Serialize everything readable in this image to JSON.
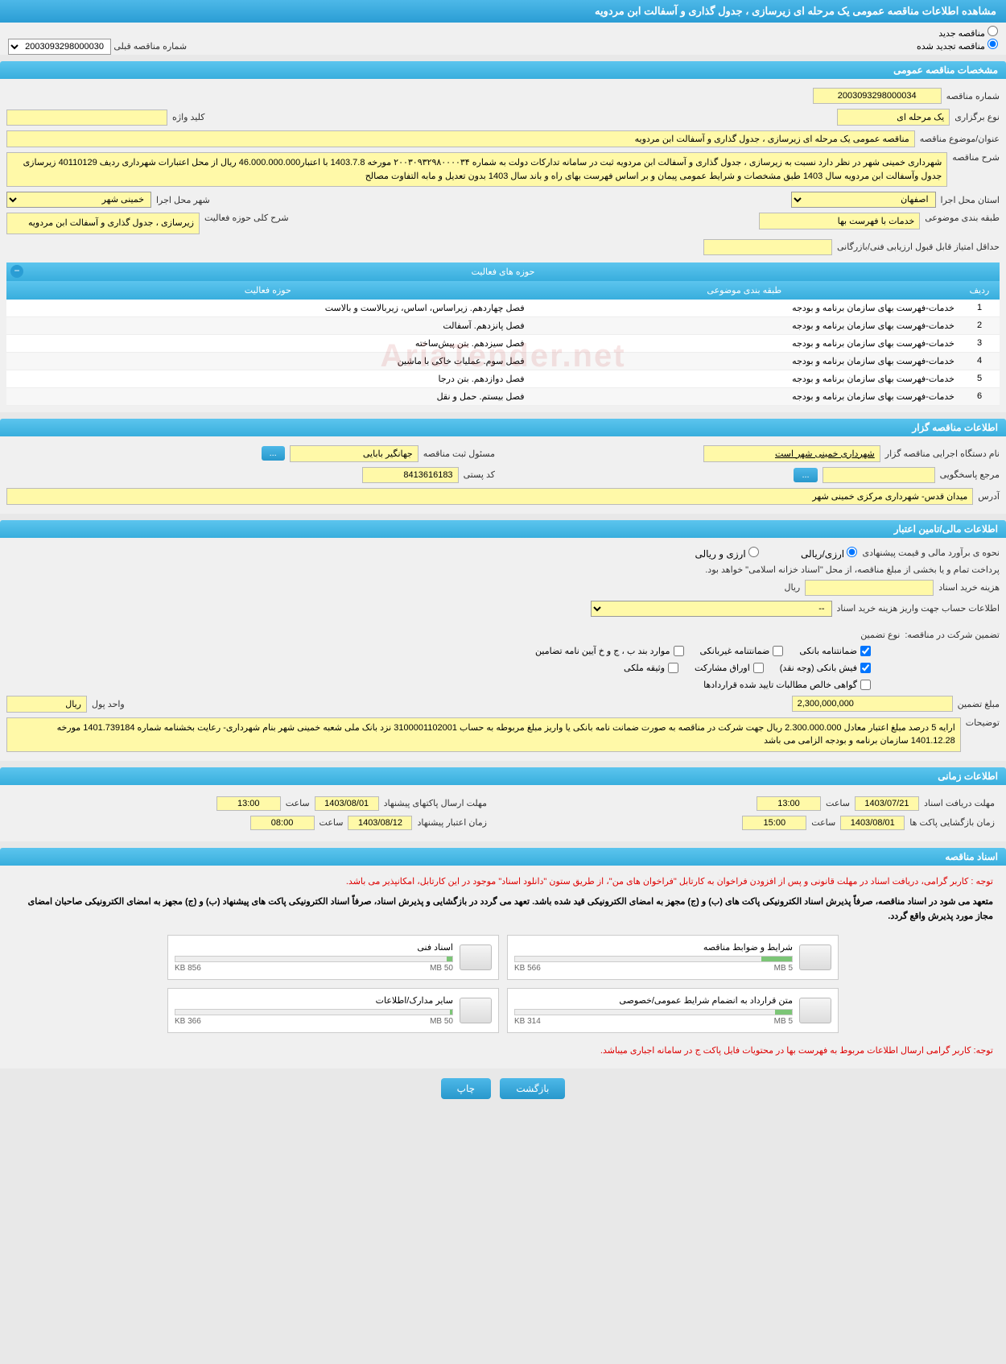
{
  "page_title": "مشاهده اطلاعات مناقصه عمومی یک مرحله ای زیرسازی ، جدول گذاری و آسفالت ابن مردویه",
  "tender_type": {
    "new_label": "مناقصه جدید",
    "renewed_label": "مناقصه تجدید شده",
    "prev_number_label": "شماره مناقصه قبلی",
    "prev_number": "2003093298000030"
  },
  "sections": {
    "general": "مشخصات مناقصه عمومی",
    "holder": "اطلاعات مناقصه گزار",
    "financial": "اطلاعات مالی/تامین اعتبار",
    "timing": "اطلاعات زمانی",
    "documents": "اسناد مناقصه"
  },
  "general": {
    "number_label": "شماره مناقصه",
    "number": "2003093298000034",
    "type_label": "نوع برگزاری",
    "type": "یک مرحله ای",
    "keyword_label": "کلید واژه",
    "keyword": "",
    "title_label": "عنوان/موضوع مناقصه",
    "title": "مناقصه عمومی یک مرحله ای زیرسازی ، جدول گذاری و آسفالت ابن مردویه",
    "desc_label": "شرح مناقصه",
    "desc": "شهرداری خمینی شهر در نظر دارد نسبت به زیرسازی ، جدول گذاری و آسفالت ابن مردویه  ثبت در سامانه تدارکات دولت به شماره ۲۰۰۳۰۹۳۲۹۸۰۰۰۰۳۴ مورخه 1403.7.8 با اعتبار46.000.000.000 ریال از محل اعتبارات شهرداری ردیف 40110129 زیرسازی جدول وآسفالت ابن مردویه سال 1403 طبق مشخصات و شرایط عمومی پیمان و بر اساس فهرست بهای راه و باند سال 1403 بدون تعدیل و مابه التفاوت مصالح",
    "province_label": "استان محل اجرا",
    "province": "اصفهان",
    "city_label": "شهر محل اجرا",
    "city": "خمینی شهر",
    "category_label": "طبقه بندی موضوعی",
    "category": "خدمات با فهرست بها",
    "scope_label": "شرح کلی حوزه فعالیت",
    "scope": "زیرسازی ، جدول گذاری و آسفالت ابن مردویه",
    "min_score_label": "حداقل امتیاز قابل قبول ارزیابی فنی/بازرگانی",
    "min_score": ""
  },
  "activities": {
    "header": "حوزه های فعالیت",
    "col_idx": "ردیف",
    "col_cat": "طبقه بندی موضوعی",
    "col_scope": "حوزه فعالیت",
    "rows": [
      {
        "idx": "1",
        "cat": "خدمات-فهرست بهای سازمان برنامه و بودجه",
        "scope": "فصل چهاردهم. زیراساس، اساس، زیربالاست و بالاست"
      },
      {
        "idx": "2",
        "cat": "خدمات-فهرست بهای سازمان برنامه و بودجه",
        "scope": "فصل پانزدهم. آسفالت"
      },
      {
        "idx": "3",
        "cat": "خدمات-فهرست بهای سازمان برنامه و بودجه",
        "scope": "فصل سیزدهم. بتن پیش‌ساخته"
      },
      {
        "idx": "4",
        "cat": "خدمات-فهرست بهای سازمان برنامه و بودجه",
        "scope": "فصل سوم. عملیات خاکی با ماشین"
      },
      {
        "idx": "5",
        "cat": "خدمات-فهرست بهای سازمان برنامه و بودجه",
        "scope": "فصل دوازدهم. بتن درجا"
      },
      {
        "idx": "6",
        "cat": "خدمات-فهرست بهای سازمان برنامه و بودجه",
        "scope": "فصل بیستم. حمل و نقل"
      }
    ]
  },
  "holder": {
    "org_label": "نام دستگاه اجرایی مناقصه گزار",
    "org": "شهرداری خمینی شهر است",
    "registrar_label": "مسئول ثبت مناقصه",
    "registrar": "جهانگیر بابایی",
    "contact_label": "مرجع پاسخگویی",
    "contact": "",
    "postal_label": "کد پستی",
    "postal": "8413616183",
    "address_label": "آدرس",
    "address": "میدان قدس- شهرداری مرکزی خمینی شهر"
  },
  "financial": {
    "estimate_label": "نحوه ی برآورد مالی و قیمت پیشنهادی",
    "opt_fx": "ارزی/ریالی",
    "opt_both": "ارزی و ریالی",
    "payment_note": "پرداخت تمام و یا بخشی از مبلغ مناقصه، از محل \"اسناد خزانه اسلامی\" خواهد بود.",
    "doc_cost_label": "هزینه خرید اسناد",
    "doc_cost": "",
    "currency": "ریال",
    "account_label": "اطلاعات حساب جهت واریز هزینه خرید اسناد",
    "account_dash": "--",
    "guarantee_label": "تضمین شرکت در مناقصه:",
    "guarantee_type_label": "نوع تضمین",
    "chk_bank": "ضمانتنامه بانکی",
    "chk_nonbank": "ضمانتنامه غیربانکی",
    "chk_bab": "موارد بند ب ، ج و خ آیین نامه تضامین",
    "chk_fish": "فیش بانکی (وجه نقد)",
    "chk_stocks": "اوراق مشارکت",
    "chk_property": "وثیقه ملکی",
    "chk_claims": "گواهی خالص مطالبات تایید شده قراردادها",
    "amount_label": "مبلغ تضمین",
    "amount": "2,300,000,000",
    "unit_label": "واحد پول",
    "unit": "ریال",
    "notes_label": "توضیحات",
    "notes": "ارایه 5 درصد مبلغ اعتبار معادل 2.300.000.000 ریال جهت شرکت در مناقصه به صورت ضمانت نامه بانکی یا واریز مبلغ مربوطه به حساب 3100001102001 نزد بانک ملی شعبه خمینی شهر بنام شهرداری- رعایت بخشنامه شماره 1401.739184 مورخه 1401.12.28 سازمان  برنامه و بودجه الزامی می باشد"
  },
  "timing": {
    "receive_label": "مهلت دریافت اسناد",
    "receive_date": "1403/07/21",
    "receive_time": "13:00",
    "submit_label": "مهلت ارسال پاکتهای پیشنهاد",
    "submit_date": "1403/08/01",
    "submit_time": "13:00",
    "open_label": "زمان بازگشایی پاکت ها",
    "open_date": "1403/08/01",
    "open_time": "15:00",
    "valid_label": "زمان اعتبار پیشنهاد",
    "valid_date": "1403/08/12",
    "valid_time": "08:00",
    "time_label": "ساعت"
  },
  "docs": {
    "notice1": "توجه : کاربر گرامی، دریافت اسناد در مهلت قانونی و پس از افزودن فراخوان به کارتابل \"فراخوان های من\"، از طریق ستون \"دانلود اسناد\" موجود در این کارتابل، امکانپذیر می باشد.",
    "notice2": "متعهد می شود در اسناد مناقصه، صرفاً پذیرش اسناد الکترونیکی پاکت های (ب) و (ج) مجهز به امضای الکترونیکی قید شده باشد. تعهد می گردد در بازگشایی و پذیرش اسناد، صرفاً اسناد الکترونیکی پاکت های پیشنهاد (ب) و (ج) مجهز به امضای الکترونیکی صاحبان امضای مجاز مورد پذیرش واقع گردد.",
    "notice3": "توجه: کاربر گرامی ارسال اطلاعات مربوط به فهرست بها در محتویات فایل پاکت ج در سامانه اجباری میباشد.",
    "files": [
      {
        "name": "شرایط و ضوابط مناقصه",
        "size": "566 KB",
        "max": "5 MB",
        "pct": 11
      },
      {
        "name": "اسناد فنی",
        "size": "856 KB",
        "max": "50 MB",
        "pct": 2
      },
      {
        "name": "متن قرارداد به انضمام شرایط عمومی/خصوصی",
        "size": "314 KB",
        "max": "5 MB",
        "pct": 6
      },
      {
        "name": "سایر مدارک/اطلاعات",
        "size": "366 KB",
        "max": "50 MB",
        "pct": 1
      }
    ]
  },
  "buttons": {
    "back": "بازگشت",
    "print": "چاپ",
    "dots": "..."
  },
  "watermark": "AriaTender.net"
}
